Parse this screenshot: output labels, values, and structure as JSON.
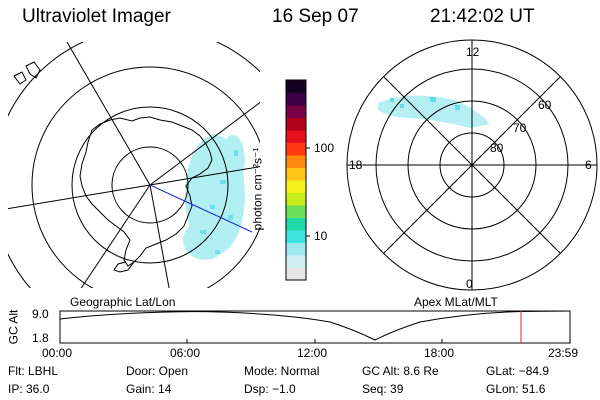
{
  "header": {
    "instrument": "Ultraviolet Imager",
    "date": "16 Sep 07",
    "time": "21:42:02 UT"
  },
  "left_panel": {
    "label": "Geographic Lat/Lon"
  },
  "right_panel": {
    "label": "Apex MLat/MLT",
    "mlt_labels": [
      "12",
      "18",
      "6",
      "0"
    ],
    "mlat_labels": [
      "60",
      "70",
      "80"
    ]
  },
  "colorbar": {
    "unit_label": "photon cm⁻²s⁻¹",
    "ticks": [
      "100",
      "10"
    ],
    "colors": [
      "#e6e6e6",
      "#cfeef2",
      "#9ee8ee",
      "#3ee3df",
      "#1fd9a8",
      "#6be15a",
      "#c6ec1a",
      "#f6f11a",
      "#ffc415",
      "#ff8a10",
      "#ff3a10",
      "#e8101a",
      "#b1001a",
      "#7a0045",
      "#3d0048",
      "#150022"
    ]
  },
  "altitude_plot": {
    "ylabel": "GC Alt",
    "y_ticks": [
      "9.0",
      "1.8"
    ],
    "x_ticks": [
      "00:00",
      "06:00",
      "12:00",
      "18:00",
      "23:59"
    ]
  },
  "footer": {
    "filter": "Flt: LBHL",
    "door": "Door: Open",
    "mode": "Mode: Normal",
    "gc_alt": "GC Alt: 8.6 Re",
    "glat": "GLat: −84.9",
    "ip": "IP: 36.0",
    "gain": "Gain: 14",
    "dsp": "Dsp: −1.0",
    "seq": "Seq: 39",
    "glon": "GLon: 51.6"
  }
}
